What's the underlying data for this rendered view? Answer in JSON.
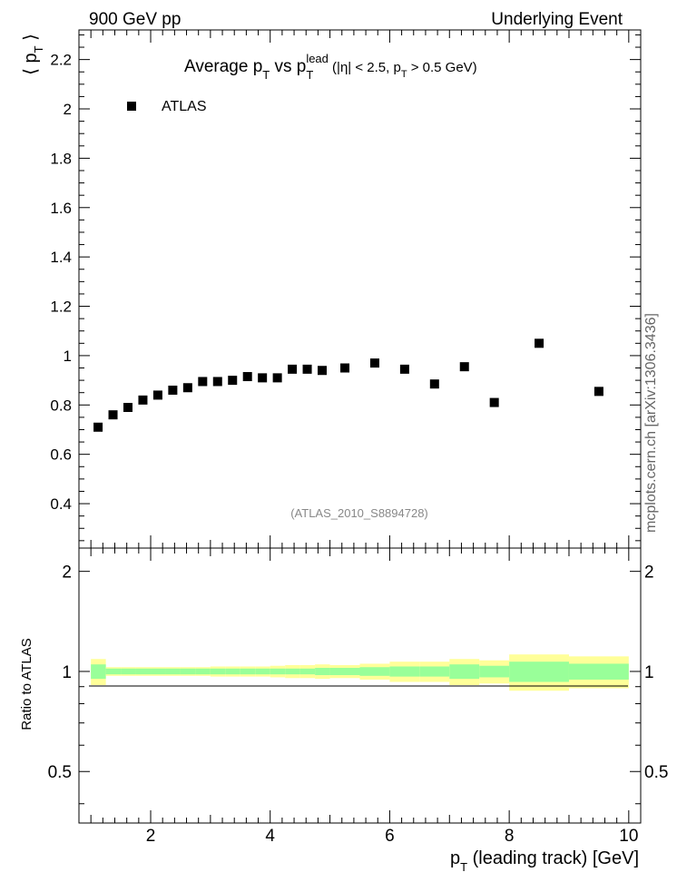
{
  "header": {
    "left": "900 GeV pp",
    "right": "Underlying Event"
  },
  "side_label": "mcplots.cern.ch [arXiv:1306.3436]",
  "main_plot": {
    "title_parts": {
      "t1": "Average p",
      "t2": "T",
      "t3": " vs p",
      "t4": "T",
      "t5": "lead",
      "t6": " (|η| < 2.5, p",
      "t7": "T",
      "t8": " > 0.5 GeV)"
    },
    "ylabel_parts": {
      "a": "⟨ p",
      "b": "T",
      "c": " ⟩"
    },
    "legend_label": "ATLAS",
    "watermark": "(ATLAS_2010_S8894728)"
  },
  "ratio_plot": {
    "ylabel": "Ratio to ATLAS"
  },
  "xlabel_parts": {
    "a": "p",
    "b": "T",
    "c": " (leading track) [GeV]"
  },
  "colors": {
    "marker": "#000000",
    "stat_band": "#99ff99",
    "total_band": "#ffff99"
  },
  "chart_data": [
    {
      "type": "scatter",
      "title": "Average pT vs pT lead (|η| < 2.5, pT > 0.5 GeV)",
      "xlabel": "pT (leading track) [GeV]",
      "ylabel": "⟨ pT ⟩",
      "xlim": [
        0.8,
        10.2
      ],
      "ylim": [
        0.22,
        2.32
      ],
      "xticks": [
        2,
        4,
        6,
        8,
        10
      ],
      "yticks": [
        0.4,
        0.6,
        0.8,
        1,
        1.2,
        1.4,
        1.6,
        1.8,
        2,
        2.2
      ],
      "series": [
        {
          "name": "ATLAS",
          "x": [
            1.12,
            1.37,
            1.62,
            1.87,
            2.12,
            2.37,
            2.62,
            2.87,
            3.12,
            3.37,
            3.62,
            3.87,
            4.12,
            4.37,
            4.62,
            4.87,
            5.25,
            5.75,
            6.25,
            6.75,
            7.25,
            7.75,
            8.5,
            9.5
          ],
          "y": [
            0.71,
            0.76,
            0.79,
            0.82,
            0.84,
            0.86,
            0.87,
            0.895,
            0.895,
            0.9,
            0.915,
            0.91,
            0.91,
            0.945,
            0.945,
            0.94,
            0.95,
            0.97,
            0.945,
            0.885,
            0.955,
            0.81,
            1.05,
            0.855
          ]
        }
      ]
    },
    {
      "type": "area",
      "title": "",
      "ylabel": "Ratio to ATLAS",
      "xlabel": "pT (leading track) [GeV]",
      "xlim": [
        0.8,
        10.2
      ],
      "ylim": [
        0.35,
        2.35
      ],
      "log_y": true,
      "yticks": [
        0.5,
        1,
        2
      ],
      "bins": [
        {
          "lo": 1.0,
          "hi": 1.25,
          "stat": 0.05,
          "total": 0.09
        },
        {
          "lo": 1.25,
          "hi": 1.5,
          "stat": 0.02,
          "total": 0.03
        },
        {
          "lo": 1.5,
          "hi": 1.75,
          "stat": 0.02,
          "total": 0.03
        },
        {
          "lo": 1.75,
          "hi": 2.0,
          "stat": 0.02,
          "total": 0.03
        },
        {
          "lo": 2.0,
          "hi": 2.25,
          "stat": 0.02,
          "total": 0.03
        },
        {
          "lo": 2.25,
          "hi": 2.5,
          "stat": 0.02,
          "total": 0.03
        },
        {
          "lo": 2.5,
          "hi": 2.75,
          "stat": 0.02,
          "total": 0.03
        },
        {
          "lo": 2.75,
          "hi": 3.0,
          "stat": 0.02,
          "total": 0.03
        },
        {
          "lo": 3.0,
          "hi": 3.25,
          "stat": 0.02,
          "total": 0.035
        },
        {
          "lo": 3.25,
          "hi": 3.5,
          "stat": 0.02,
          "total": 0.035
        },
        {
          "lo": 3.5,
          "hi": 3.75,
          "stat": 0.02,
          "total": 0.035
        },
        {
          "lo": 3.75,
          "hi": 4.0,
          "stat": 0.02,
          "total": 0.035
        },
        {
          "lo": 4.0,
          "hi": 4.25,
          "stat": 0.02,
          "total": 0.04
        },
        {
          "lo": 4.25,
          "hi": 4.5,
          "stat": 0.02,
          "total": 0.045
        },
        {
          "lo": 4.5,
          "hi": 4.75,
          "stat": 0.02,
          "total": 0.045
        },
        {
          "lo": 4.75,
          "hi": 5.0,
          "stat": 0.025,
          "total": 0.05
        },
        {
          "lo": 5.0,
          "hi": 5.5,
          "stat": 0.025,
          "total": 0.045
        },
        {
          "lo": 5.5,
          "hi": 6.0,
          "stat": 0.03,
          "total": 0.055
        },
        {
          "lo": 6.0,
          "hi": 6.5,
          "stat": 0.035,
          "total": 0.07
        },
        {
          "lo": 6.5,
          "hi": 7.0,
          "stat": 0.035,
          "total": 0.07
        },
        {
          "lo": 7.0,
          "hi": 7.5,
          "stat": 0.05,
          "total": 0.09
        },
        {
          "lo": 7.5,
          "hi": 8.0,
          "stat": 0.04,
          "total": 0.08
        },
        {
          "lo": 8.0,
          "hi": 9.0,
          "stat": 0.07,
          "total": 0.125
        },
        {
          "lo": 9.0,
          "hi": 10.0,
          "stat": 0.055,
          "total": 0.11
        }
      ]
    }
  ]
}
